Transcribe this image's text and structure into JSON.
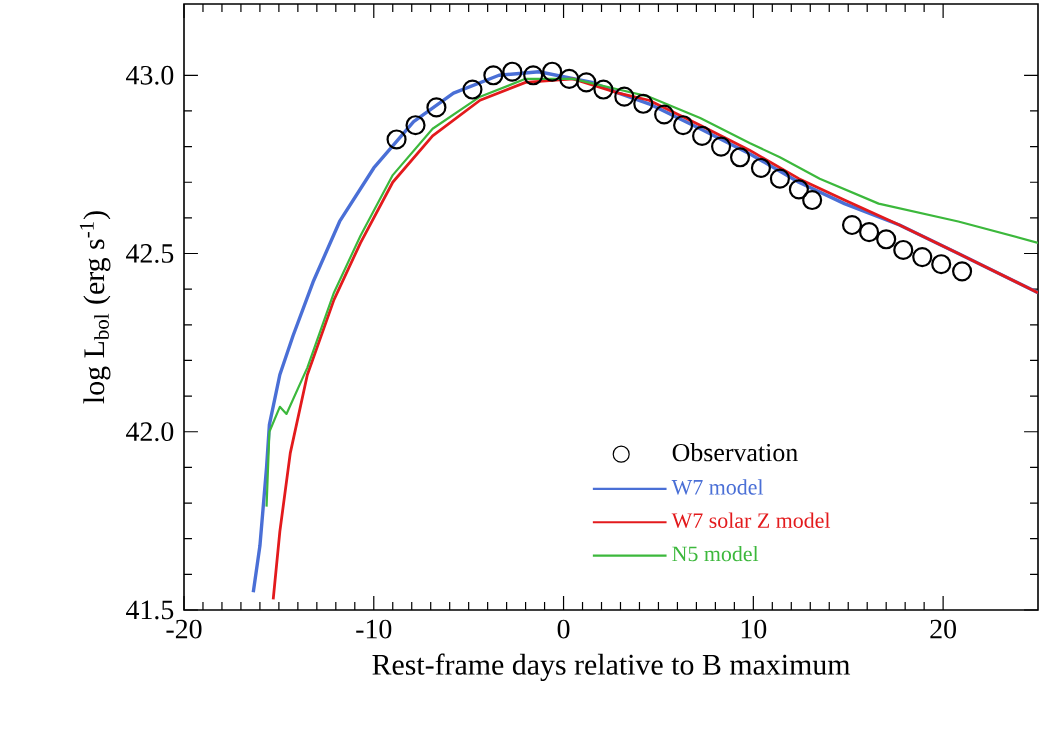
{
  "chart_data": {
    "type": "line",
    "xlabel": "Rest-frame days relative to B maximum",
    "ylabel": "log L$_{bol}$ (erg s$^{-1}$)",
    "xlim": [
      -20,
      25
    ],
    "ylim": [
      41.5,
      43.2
    ],
    "xticks": [
      -20,
      -10,
      0,
      10,
      20
    ],
    "yticks": [
      {
        "value": 41.5,
        "label": "41.5"
      },
      {
        "value": 42.0,
        "label": "42.0"
      },
      {
        "value": 42.5,
        "label": "42.5"
      },
      {
        "value": 43.0,
        "label": "43.0"
      }
    ],
    "legend": "bottom right",
    "grid": false,
    "series": [
      {
        "name": "Observation",
        "type": "scatter",
        "marker": "circle",
        "color": "#000000",
        "x": [
          -8.8,
          -7.8,
          -6.7,
          -4.8,
          -3.7,
          -2.7,
          -1.6,
          -0.6,
          0.3,
          1.2,
          2.1,
          3.2,
          4.2,
          5.3,
          6.3,
          7.3,
          8.3,
          9.3,
          10.4,
          11.4,
          12.4,
          13.1,
          15.2,
          16.1,
          17.0,
          17.9,
          18.9,
          19.9,
          21.0
        ],
        "values": [
          42.82,
          42.86,
          42.91,
          42.96,
          43.0,
          43.01,
          43.0,
          43.01,
          42.99,
          42.98,
          42.96,
          42.94,
          42.92,
          42.89,
          42.86,
          42.83,
          42.8,
          42.77,
          42.74,
          42.71,
          42.68,
          42.65,
          42.58,
          42.56,
          42.54,
          42.51,
          42.49,
          42.47,
          42.45
        ]
      },
      {
        "name": "W7 model",
        "marker": "none",
        "color": "#4a6fd6",
        "x": [
          -16.35,
          -16.0,
          -15.65,
          -15.5,
          -14.95,
          -14.25,
          -13.2,
          -11.8,
          -10.0,
          -7.9,
          -5.8,
          -3.4,
          -1.3,
          1.5,
          2.9,
          4.5,
          7.2,
          9.8,
          12.4,
          14.8,
          17.7,
          20.8,
          25.0
        ],
        "values": [
          41.55,
          41.68,
          41.9,
          42.02,
          42.16,
          42.27,
          42.42,
          42.59,
          42.74,
          42.87,
          42.95,
          43.0,
          43.01,
          42.98,
          42.95,
          42.92,
          42.85,
          42.78,
          42.7,
          42.64,
          42.58,
          42.5,
          42.39
        ]
      },
      {
        "name": "W7 solar Z model",
        "marker": "none",
        "color": "#e31a1c",
        "x": [
          -15.3,
          -14.95,
          -14.4,
          -13.5,
          -12.1,
          -10.7,
          -9.0,
          -6.9,
          -4.4,
          -2.0,
          0.5,
          2.9,
          4.5,
          7.2,
          9.8,
          12.4,
          14.8,
          17.7,
          20.8,
          25.0
        ],
        "values": [
          41.53,
          41.72,
          41.94,
          42.16,
          42.37,
          42.53,
          42.7,
          42.83,
          42.93,
          42.98,
          42.99,
          42.95,
          42.93,
          42.86,
          42.79,
          42.71,
          42.65,
          42.58,
          42.5,
          42.39
        ]
      },
      {
        "name": "N5 model",
        "marker": "none",
        "color": "#3cb83c",
        "x": [
          -15.65,
          -15.5,
          -14.95,
          -14.6,
          -13.5,
          -12.1,
          -10.7,
          -9.0,
          -6.9,
          -4.4,
          -2.0,
          0.5,
          2.9,
          4.5,
          7.2,
          9.8,
          11.4,
          13.5,
          16.6,
          20.8,
          25.0
        ],
        "values": [
          41.79,
          42.0,
          42.07,
          42.05,
          42.18,
          42.39,
          42.55,
          42.72,
          42.85,
          42.94,
          42.99,
          42.99,
          42.96,
          42.94,
          42.88,
          42.81,
          42.77,
          42.71,
          42.64,
          42.59,
          42.53
        ]
      }
    ]
  }
}
